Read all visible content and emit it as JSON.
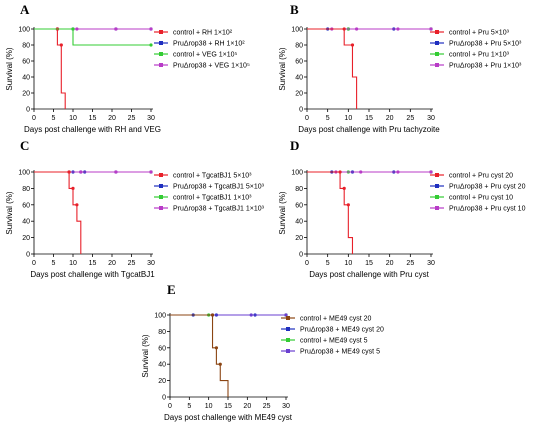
{
  "chart_data": [
    {
      "panel": "A",
      "type": "line",
      "xlabel": "Days post challenge with RH and VEG",
      "ylabel": "Survival (%)",
      "xlim": [
        0,
        30
      ],
      "ylim": [
        0,
        100
      ],
      "xticks": [
        0,
        5,
        10,
        15,
        20,
        25,
        30
      ],
      "yticks": [
        0,
        20,
        40,
        60,
        80,
        100
      ],
      "legend_position": "right",
      "series": [
        {
          "name": "control + RH 1×10²",
          "color": "#e8202a",
          "steps": [
            [
              0,
              100
            ],
            [
              6,
              100
            ],
            [
              6,
              80
            ],
            [
              7,
              80
            ],
            [
              7,
              20
            ],
            [
              8,
              20
            ],
            [
              8,
              0
            ]
          ],
          "marker_x": [
            6,
            7
          ]
        },
        {
          "name": "PruΔrop38 + RH 1×10²",
          "color": "#1f2fbf",
          "steps": [
            [
              0,
              100
            ],
            [
              30,
              100
            ]
          ],
          "marker_x": [
            6,
            10,
            21,
            30
          ]
        },
        {
          "name": "control + VEG 1×10⁵",
          "color": "#33cc33",
          "steps": [
            [
              0,
              100
            ],
            [
              10,
              100
            ],
            [
              10,
              80
            ],
            [
              30,
              80
            ]
          ],
          "marker_x": [
            10,
            30
          ]
        },
        {
          "name": "PruΔrop38 + VEG 1×10⁵",
          "color": "#b83bc7",
          "steps": [
            [
              0,
              100
            ],
            [
              30,
              100
            ]
          ],
          "marker_x": [
            6,
            11,
            21,
            30
          ]
        }
      ]
    },
    {
      "panel": "B",
      "type": "line",
      "xlabel": "Days post challenge with Pru tachyzoite",
      "ylabel": "Survival (%)",
      "xlim": [
        0,
        30
      ],
      "ylim": [
        0,
        100
      ],
      "xticks": [
        0,
        5,
        10,
        15,
        20,
        25,
        30
      ],
      "yticks": [
        0,
        20,
        40,
        60,
        80,
        100
      ],
      "legend_position": "right",
      "series": [
        {
          "name": "control + Pru 5×10³",
          "color": "#e8202a",
          "steps": [
            [
              0,
              100
            ],
            [
              9,
              100
            ],
            [
              9,
              80
            ],
            [
              11,
              80
            ],
            [
              11,
              40
            ],
            [
              12,
              40
            ],
            [
              12,
              0
            ]
          ],
          "marker_x": [
            9,
            11
          ]
        },
        {
          "name": "PruΔrop38 + Pru 5×10³",
          "color": "#1f2fbf",
          "steps": [
            [
              0,
              100
            ],
            [
              30,
              100
            ]
          ],
          "marker_x": [
            5,
            10,
            21,
            30
          ]
        },
        {
          "name": "control + Pru 1×10³",
          "color": "#33cc33",
          "steps": [
            [
              0,
              100
            ],
            [
              30,
              100
            ]
          ],
          "marker_x": [
            10,
            30
          ]
        },
        {
          "name": "PruΔrop38 + Pru 1×10³",
          "color": "#b83bc7",
          "steps": [
            [
              0,
              100
            ],
            [
              30,
              100
            ]
          ],
          "marker_x": [
            6,
            12,
            22,
            30
          ]
        }
      ]
    },
    {
      "panel": "C",
      "type": "line",
      "xlabel": "Days post challenge with TgcatBJ1",
      "ylabel": "Survival (%)",
      "xlim": [
        0,
        30
      ],
      "ylim": [
        0,
        100
      ],
      "xticks": [
        0,
        5,
        10,
        15,
        20,
        25,
        30
      ],
      "yticks": [
        0,
        20,
        40,
        60,
        80,
        100
      ],
      "legend_position": "right",
      "series": [
        {
          "name": "control + TgcatBJ1 5×10³",
          "color": "#e8202a",
          "steps": [
            [
              0,
              100
            ],
            [
              9,
              100
            ],
            [
              9,
              80
            ],
            [
              10,
              80
            ],
            [
              10,
              60
            ],
            [
              11,
              60
            ],
            [
              11,
              40
            ],
            [
              12,
              40
            ],
            [
              12,
              0
            ]
          ],
          "marker_x": [
            9,
            10,
            11
          ]
        },
        {
          "name": "PruΔrop38 + TgcatBJ1 5×10³",
          "color": "#1f2fbf",
          "steps": [
            [
              0,
              100
            ],
            [
              30,
              100
            ]
          ],
          "marker_x": [
            10,
            12,
            13,
            21,
            30
          ]
        },
        {
          "name": "control + TgcatBJ1 1×10³",
          "color": "#33cc33",
          "steps": [
            [
              0,
              100
            ],
            [
              30,
              100
            ]
          ],
          "marker_x": [
            9,
            30
          ]
        },
        {
          "name": "PruΔrop38 + TgcatBJ1 1×10³",
          "color": "#b83bc7",
          "steps": [
            [
              0,
              100
            ],
            [
              30,
              100
            ]
          ],
          "marker_x": [
            9,
            12,
            21,
            30
          ]
        }
      ]
    },
    {
      "panel": "D",
      "type": "line",
      "xlabel": "Days post challenge with Pru cyst",
      "ylabel": "Survival (%)",
      "xlim": [
        0,
        30
      ],
      "ylim": [
        0,
        100
      ],
      "xticks": [
        0,
        5,
        10,
        15,
        20,
        25,
        30
      ],
      "yticks": [
        0,
        20,
        40,
        60,
        80,
        100
      ],
      "legend_position": "right",
      "series": [
        {
          "name": "control + Pru cyst 20",
          "color": "#e8202a",
          "steps": [
            [
              0,
              100
            ],
            [
              8,
              100
            ],
            [
              8,
              80
            ],
            [
              9,
              80
            ],
            [
              9,
              60
            ],
            [
              10,
              60
            ],
            [
              10,
              20
            ],
            [
              11,
              20
            ],
            [
              11,
              0
            ]
          ],
          "marker_x": [
            8,
            9,
            10
          ]
        },
        {
          "name": "PruΔrop38 + Pru cyst 20",
          "color": "#1f2fbf",
          "steps": [
            [
              0,
              100
            ],
            [
              30,
              100
            ]
          ],
          "marker_x": [
            6,
            11,
            21,
            30
          ]
        },
        {
          "name": "control + Pru cyst 10",
          "color": "#33cc33",
          "steps": [
            [
              0,
              100
            ],
            [
              30,
              100
            ]
          ],
          "marker_x": [
            10,
            30
          ]
        },
        {
          "name": "PruΔrop38 + Pru cyst 10",
          "color": "#b83bc7",
          "steps": [
            [
              0,
              100
            ],
            [
              30,
              100
            ]
          ],
          "marker_x": [
            7,
            13,
            22,
            30
          ]
        }
      ]
    },
    {
      "panel": "E",
      "type": "line",
      "xlabel": "Days post challenge with ME49 cyst",
      "ylabel": "Survival (%)",
      "xlim": [
        0,
        30
      ],
      "ylim": [
        0,
        100
      ],
      "xticks": [
        0,
        5,
        10,
        15,
        20,
        25,
        30
      ],
      "yticks": [
        0,
        20,
        40,
        60,
        80,
        100
      ],
      "legend_position": "right",
      "series": [
        {
          "name": "control + ME49 cyst 20",
          "color": "#8b4513",
          "steps": [
            [
              0,
              100
            ],
            [
              11,
              100
            ],
            [
              11,
              60
            ],
            [
              12,
              60
            ],
            [
              12,
              40
            ],
            [
              13,
              40
            ],
            [
              13,
              20
            ],
            [
              15,
              20
            ],
            [
              15,
              0
            ]
          ],
          "marker_x": [
            11,
            12,
            13
          ]
        },
        {
          "name": "PruΔrop38 + ME49 cyst 20",
          "color": "#1f2fbf",
          "steps": [
            [
              0,
              100
            ],
            [
              30,
              100
            ]
          ],
          "marker_x": [
            6,
            12,
            22,
            30
          ]
        },
        {
          "name": "control + ME49 cyst 5",
          "color": "#33cc33",
          "steps": [
            [
              0,
              100
            ],
            [
              30,
              100
            ]
          ],
          "marker_x": [
            10,
            30
          ]
        },
        {
          "name": "PruΔrop38 + ME49 cyst 5",
          "color": "#6a3fd0",
          "steps": [
            [
              0,
              100
            ],
            [
              30,
              100
            ]
          ],
          "marker_x": [
            11,
            21,
            30
          ]
        }
      ]
    }
  ]
}
